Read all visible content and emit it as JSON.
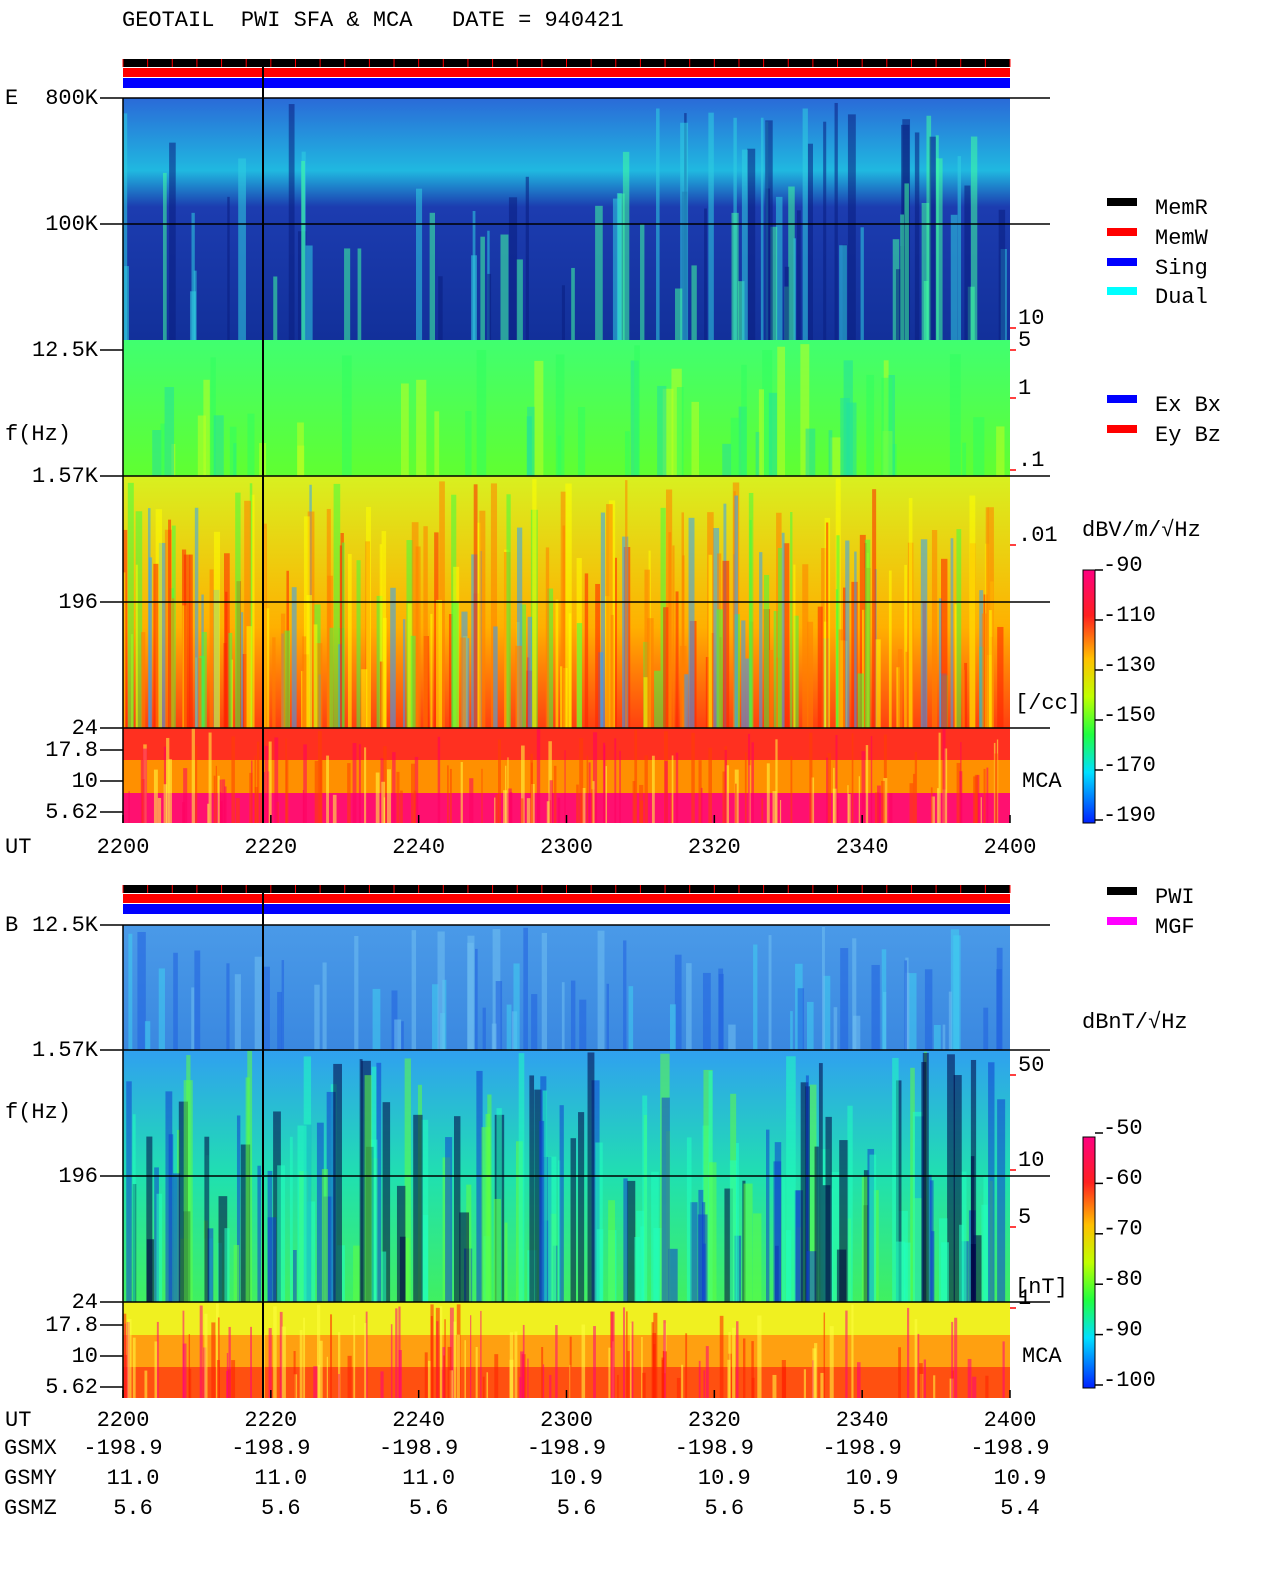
{
  "title": "GEOTAIL  PWI SFA & MCA   DATE = 940421",
  "panels": [
    {
      "label": "E",
      "y_axis_label": "f(Hz)",
      "freq_ticks": [
        "800K",
        "100K",
        "12.5K",
        "1.57K",
        "196",
        "24",
        "17.8",
        "10",
        "5.62"
      ],
      "time_axis_label": "UT",
      "time_ticks": [
        "2200",
        "2220",
        "2240",
        "2300",
        "2320",
        "2340",
        "2400"
      ],
      "side_scale": [
        "10",
        "5",
        "1",
        ".1",
        ".01"
      ],
      "side_unit": "[/cc]",
      "mca_label": "MCA",
      "legend": [
        {
          "label": "MemR",
          "color": "#000000"
        },
        {
          "label": "MemW",
          "color": "#ff0000"
        },
        {
          "label": "Sing",
          "color": "#0000ff"
        },
        {
          "label": "Dual",
          "color": "#00ffff"
        },
        {
          "label": "Ex Bx",
          "color": "#0000ff"
        },
        {
          "label": "Ey Bz",
          "color": "#ff0000"
        }
      ],
      "colorbar_label": "dBV/m/√Hz",
      "colorbar_ticks": [
        -90,
        -110,
        -130,
        -150,
        -170,
        -190
      ]
    },
    {
      "label": "B",
      "y_axis_label": "f(Hz)",
      "freq_ticks": [
        "12.5K",
        "1.57K",
        "196",
        "24",
        "17.8",
        "10",
        "5.62"
      ],
      "time_axis_label": "UT",
      "time_ticks": [
        "2200",
        "2220",
        "2240",
        "2300",
        "2320",
        "2340",
        "2400"
      ],
      "side_scale": [
        "50",
        "10",
        "5",
        "1"
      ],
      "side_unit": "[nT]",
      "mca_label": "MCA",
      "legend": [
        {
          "label": "PWI",
          "color": "#000000"
        },
        {
          "label": "MGF",
          "color": "#ff00ff"
        }
      ],
      "colorbar_label": "dBnT/√Hz",
      "colorbar_ticks": [
        -50,
        -60,
        -70,
        -80,
        -90,
        -100
      ]
    }
  ],
  "ephemeris": {
    "row_labels": [
      "GSMX",
      "GSMY",
      "GSMZ"
    ],
    "rows": [
      [
        "-198.9",
        "-198.9",
        "-198.9",
        "-198.9",
        "-198.9",
        "-198.9",
        "-198.9"
      ],
      [
        "11.0",
        "11.0",
        "11.0",
        "10.9",
        "10.9",
        "10.9",
        "10.9"
      ],
      [
        "5.6",
        "5.6",
        "5.6",
        "5.6",
        "5.6",
        "5.5",
        "5.4"
      ]
    ]
  }
}
